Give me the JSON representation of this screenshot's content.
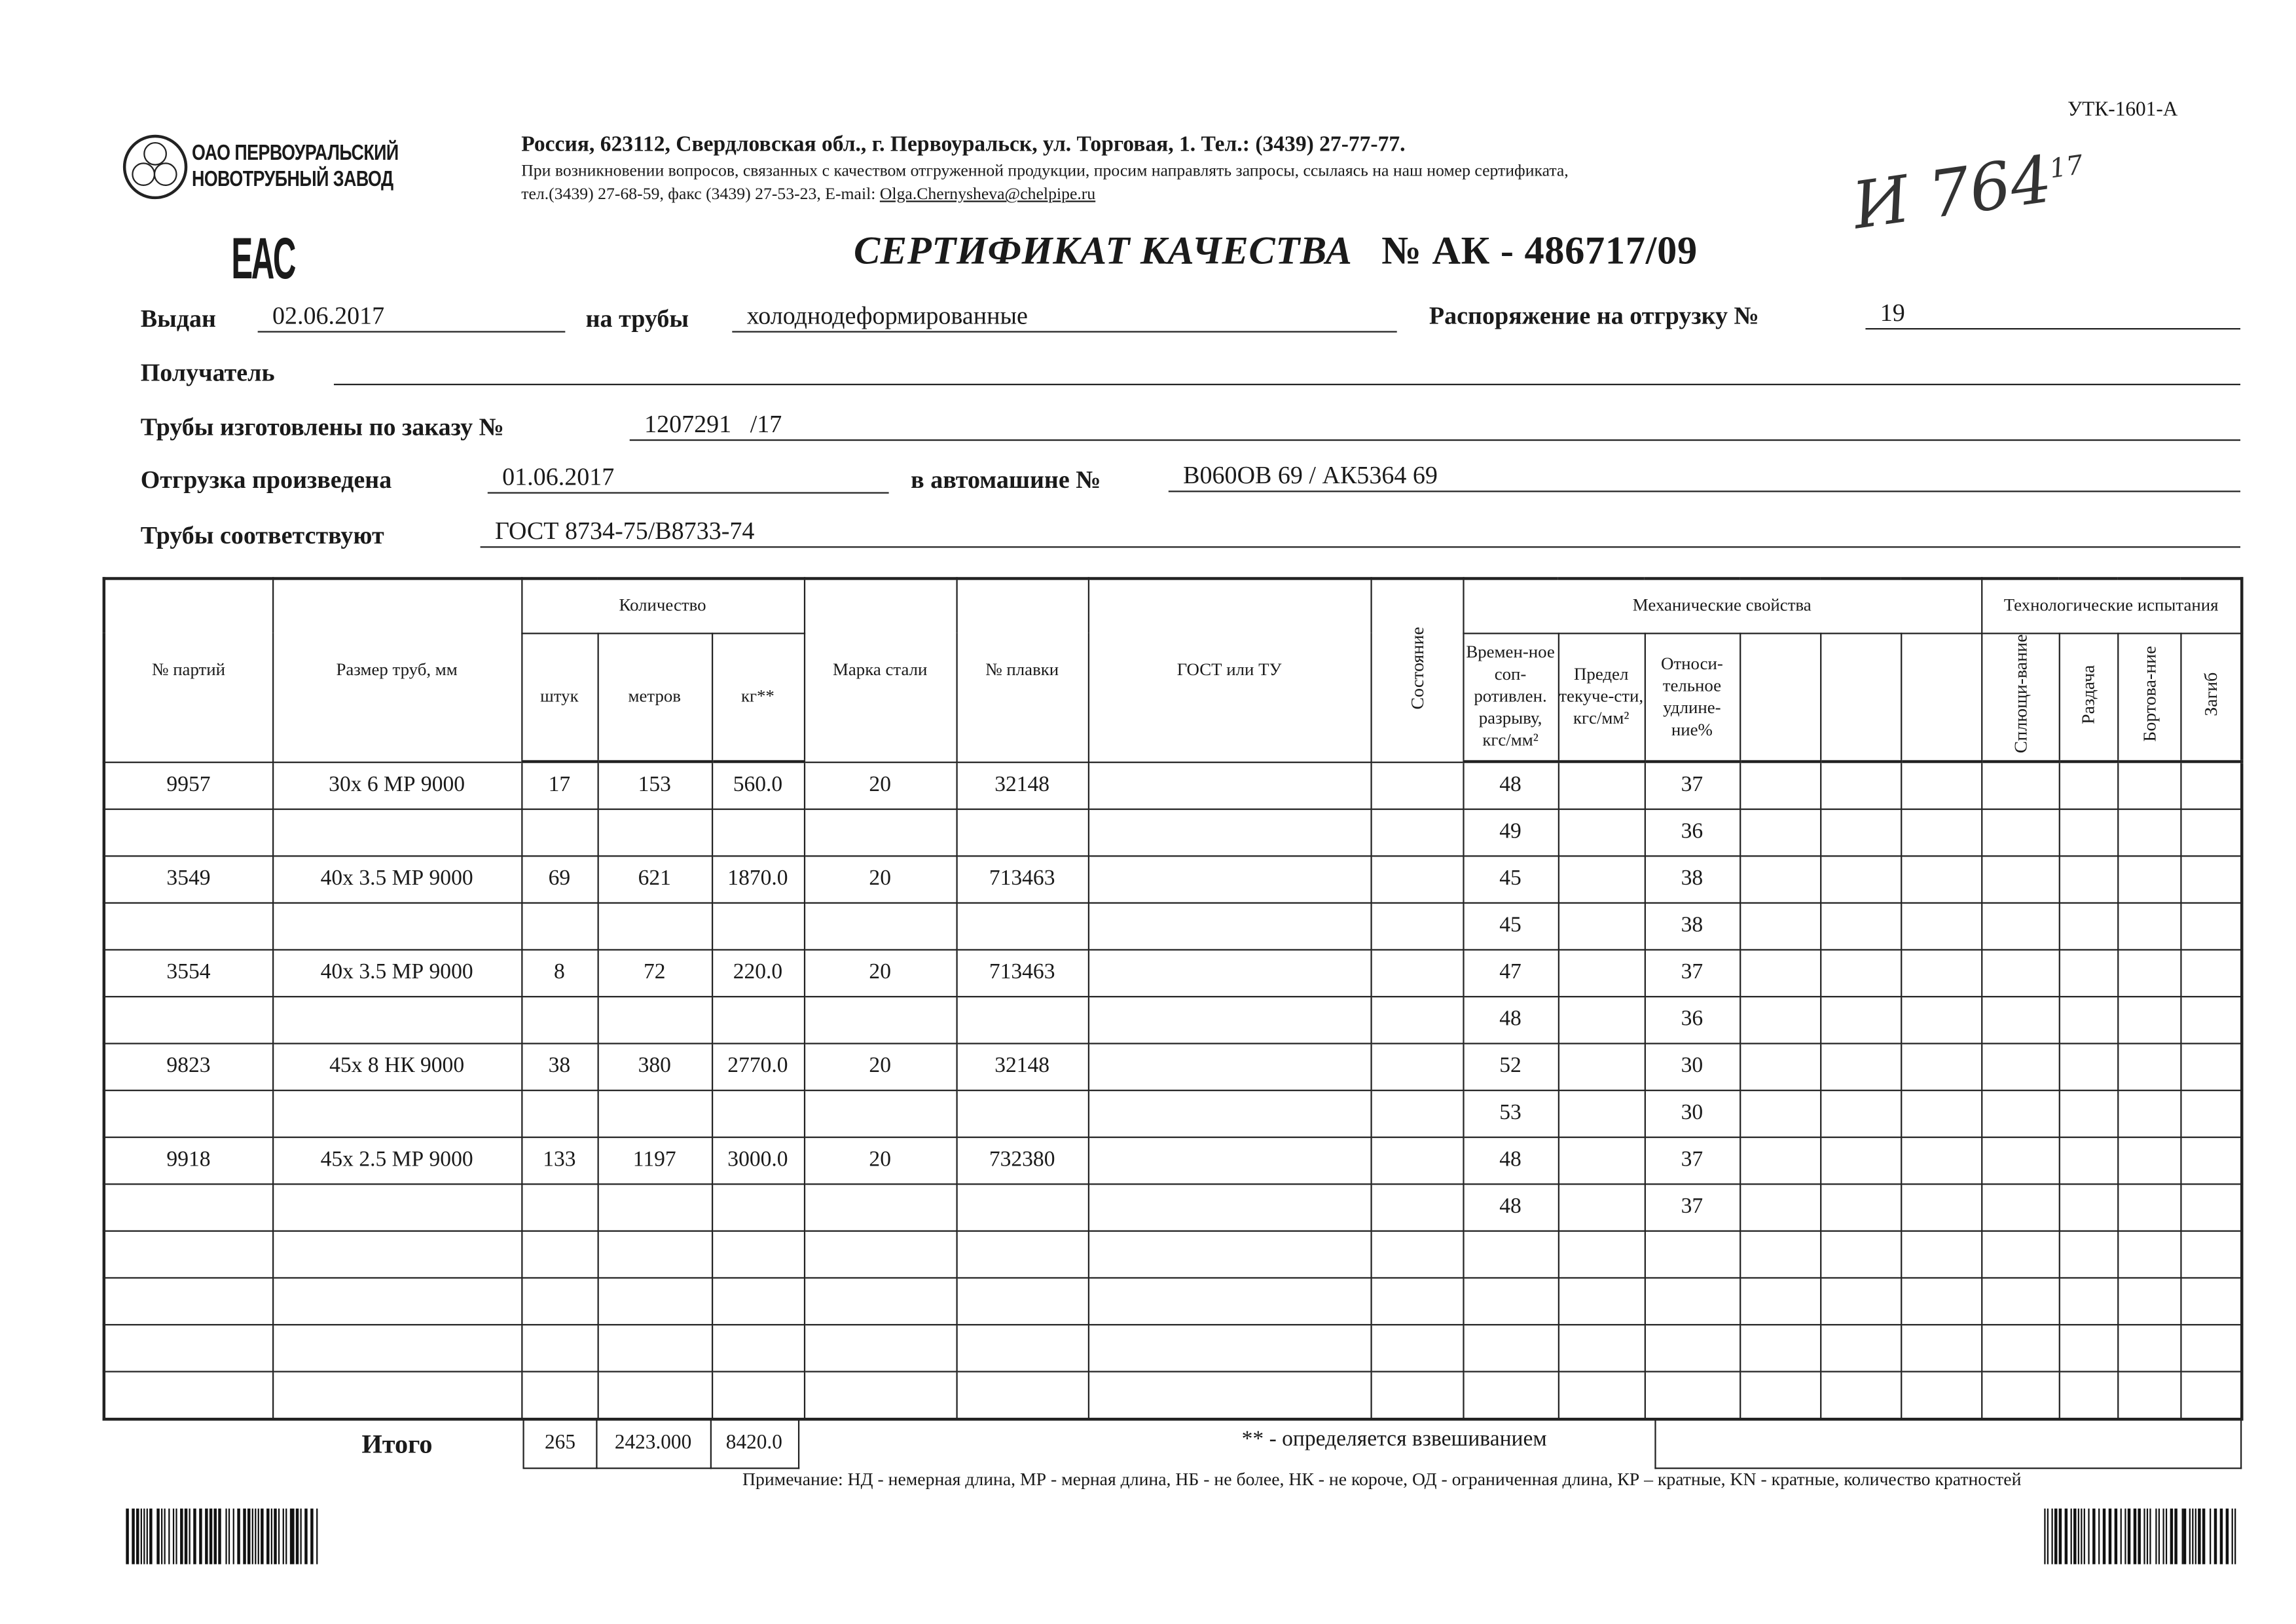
{
  "header": {
    "form_code": "УТК-1601-А",
    "company_line1": "ОАО ПЕРВОУРАЛЬСКИЙ",
    "company_line2": "НОВОТРУБНЫЙ ЗАВОД",
    "eac_mark": "EAC",
    "address": "Россия, 623112, Свердловская обл., г. Первоуральск, ул. Торговая, 1. Тел.: (3439) 27-77-77.",
    "contact_note": "При возникновении вопросов, связанных с качеством отгруженной продукции, просим направлять запросы, ссылаясь на наш номер сертификата,",
    "phones": "тел.(3439) 27-68-59, факс (3439) 27-53-23,  E-mail: ",
    "email": "Olga.Chernysheva@chelpipe.ru",
    "handwritten": "И 764",
    "handwritten_sup": "17"
  },
  "title": {
    "text": "СЕРТИФИКАТ КАЧЕСТВА",
    "number": "№  АК -  486717/09"
  },
  "fields": {
    "issued_label": "Выдан",
    "issued": "02.06.2017",
    "pipes_label": "на трубы",
    "pipes": "холоднодеформированные",
    "order_ship_label": "Распоряжение на отгрузку №",
    "order_ship": "19",
    "recipient_label": "Получатель",
    "recipient": "",
    "made_order_label": "Трубы изготовлены по заказу №",
    "made_order": "1207291   /17",
    "shipped_label": "Отгрузка произведена",
    "shipped": "01.06.2017",
    "truck_label": "в автомашине №",
    "truck": "В060ОВ 69 / АК5364 69",
    "conform_label": "Трубы соответствуют",
    "conform": "ГОСТ 8734-75/В8733-74"
  },
  "table": {
    "h_batch": "№ партий",
    "h_size": "Размер труб, мм",
    "h_qty": "Количество",
    "h_pcs": "штук",
    "h_m": "метров",
    "h_kg": "кг**",
    "h_steel": "Марка стали",
    "h_heat": "№ плавки",
    "h_gost": "ГОСТ или ТУ",
    "h_state": "Состояние",
    "h_mech": "Механические свойства",
    "h_tensile": "Времен-ное соп-ротивлен. разрыву, кгс/мм²",
    "h_yield": "Предел текуче-сти, кгс/мм²",
    "h_elong": "Относи-тельное удлине-ние%",
    "h_tech": "Технологические испытания",
    "h_flat": "Сплющи-вание",
    "h_expand": "Раздача",
    "h_flange": "Бортова-ние",
    "h_bend": "Загиб",
    "rows": [
      {
        "batch": "9957",
        "size": "30x 6 МР 9000",
        "pcs": "17",
        "m": "153",
        "kg": "560.0",
        "steel": "20",
        "heat": "32148",
        "tensile": "48",
        "elong": "37"
      },
      {
        "batch": "",
        "size": "",
        "pcs": "",
        "m": "",
        "kg": "",
        "steel": "",
        "heat": "",
        "tensile": "49",
        "elong": "36"
      },
      {
        "batch": "3549",
        "size": "40x 3.5 МР 9000",
        "pcs": "69",
        "m": "621",
        "kg": "1870.0",
        "steel": "20",
        "heat": "713463",
        "tensile": "45",
        "elong": "38"
      },
      {
        "batch": "",
        "size": "",
        "pcs": "",
        "m": "",
        "kg": "",
        "steel": "",
        "heat": "",
        "tensile": "45",
        "elong": "38"
      },
      {
        "batch": "3554",
        "size": "40x 3.5 МР 9000",
        "pcs": "8",
        "m": "72",
        "kg": "220.0",
        "steel": "20",
        "heat": "713463",
        "tensile": "47",
        "elong": "37"
      },
      {
        "batch": "",
        "size": "",
        "pcs": "",
        "m": "",
        "kg": "",
        "steel": "",
        "heat": "",
        "tensile": "48",
        "elong": "36"
      },
      {
        "batch": "9823",
        "size": "45x 8 НК 9000",
        "pcs": "38",
        "m": "380",
        "kg": "2770.0",
        "steel": "20",
        "heat": "32148",
        "tensile": "52",
        "elong": "30"
      },
      {
        "batch": "",
        "size": "",
        "pcs": "",
        "m": "",
        "kg": "",
        "steel": "",
        "heat": "",
        "tensile": "53",
        "elong": "30"
      },
      {
        "batch": "9918",
        "size": "45x 2.5 МР 9000",
        "pcs": "133",
        "m": "1197",
        "kg": "3000.0",
        "steel": "20",
        "heat": "732380",
        "tensile": "48",
        "elong": "37"
      },
      {
        "batch": "",
        "size": "",
        "pcs": "",
        "m": "",
        "kg": "",
        "steel": "",
        "heat": "",
        "tensile": "48",
        "elong": "37"
      },
      {},
      {},
      {},
      {}
    ]
  },
  "totals": {
    "label": "Итого",
    "pcs": "265",
    "m": "2423.000",
    "kg": "8420.0",
    "weighing_note": "** - определяется взвешиванием"
  },
  "footnote": "Примечание: НД - немерная длина, МР - мерная длина, НБ - не более, НК - не короче, ОД - ограниченная длина, КР – кратные, KN - кратные, количество кратностей"
}
